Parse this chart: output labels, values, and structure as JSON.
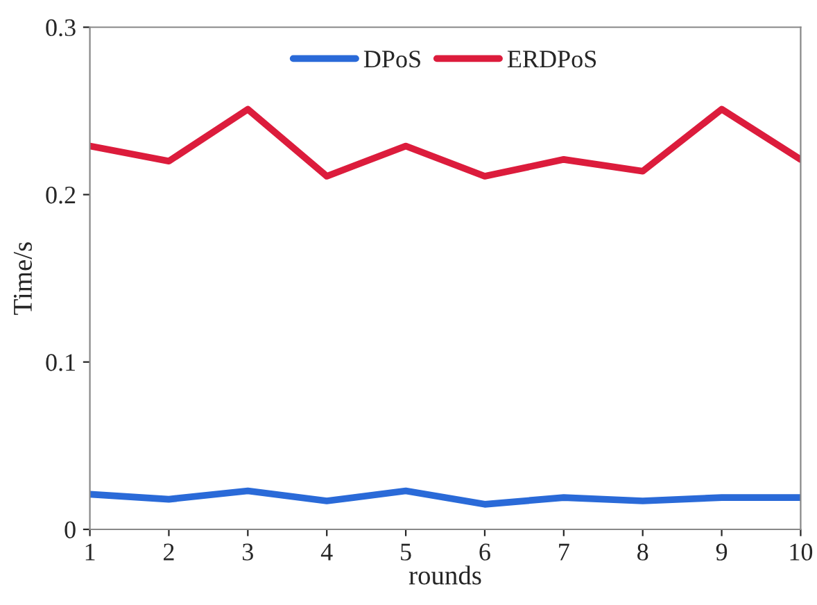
{
  "chart_data": {
    "type": "line",
    "xlabel": "rounds",
    "ylabel": "Time/s",
    "x": [
      1,
      2,
      3,
      4,
      5,
      6,
      7,
      8,
      9,
      10
    ],
    "series": [
      {
        "name": "DPoS",
        "color": "#2a6ad8",
        "values": [
          0.021,
          0.018,
          0.023,
          0.017,
          0.023,
          0.015,
          0.019,
          0.017,
          0.019,
          0.019
        ]
      },
      {
        "name": "ERDPoS",
        "color": "#dc1c3c",
        "values": [
          0.229,
          0.22,
          0.251,
          0.211,
          0.229,
          0.211,
          0.221,
          0.214,
          0.251,
          0.221
        ]
      }
    ],
    "xlim": [
      1,
      10
    ],
    "xticks": [
      1,
      2,
      3,
      4,
      5,
      6,
      7,
      8,
      9,
      10
    ],
    "ylim": [
      0,
      0.3
    ],
    "yticks": [
      0,
      0.1,
      0.2,
      0.3
    ],
    "legend": "top",
    "grid": false,
    "marker": "none",
    "line_style": "solid"
  }
}
